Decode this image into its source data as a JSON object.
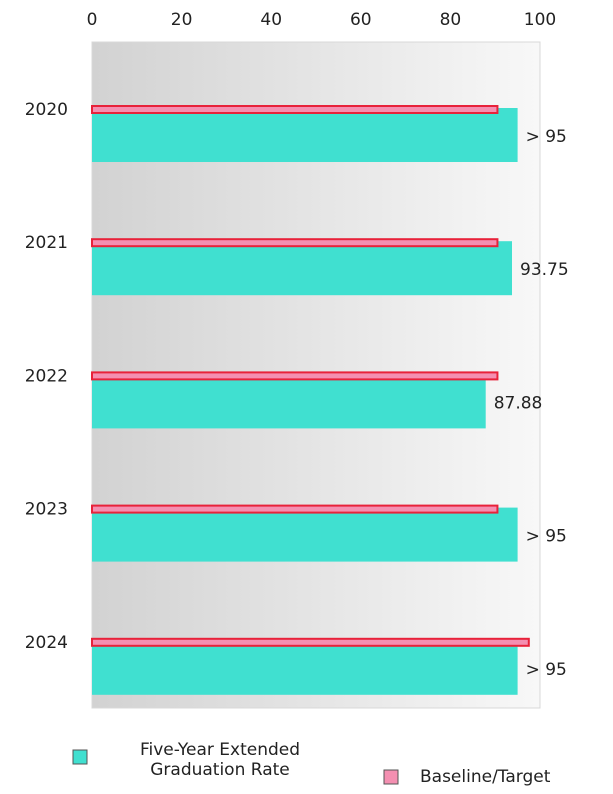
{
  "chart_data": {
    "type": "hbar",
    "categories": [
      "2020",
      "2021",
      "2022",
      "2023",
      "2024"
    ],
    "series": [
      {
        "name": "Five-Year Extended Graduation Rate",
        "color": "#40e0d0",
        "values": [
          95,
          93.75,
          87.88,
          95,
          95
        ],
        "value_labels": [
          "> 95",
          "93.75",
          "87.88",
          "> 95",
          "> 95"
        ]
      },
      {
        "name": "Baseline/Target",
        "color": "#f48fb1",
        "values": [
          90.5,
          90.5,
          90.5,
          90.5,
          97.5
        ]
      }
    ],
    "xlim": [
      0,
      100
    ],
    "xticks": [
      0,
      20,
      40,
      60,
      80,
      100
    ],
    "grid": false
  }
}
